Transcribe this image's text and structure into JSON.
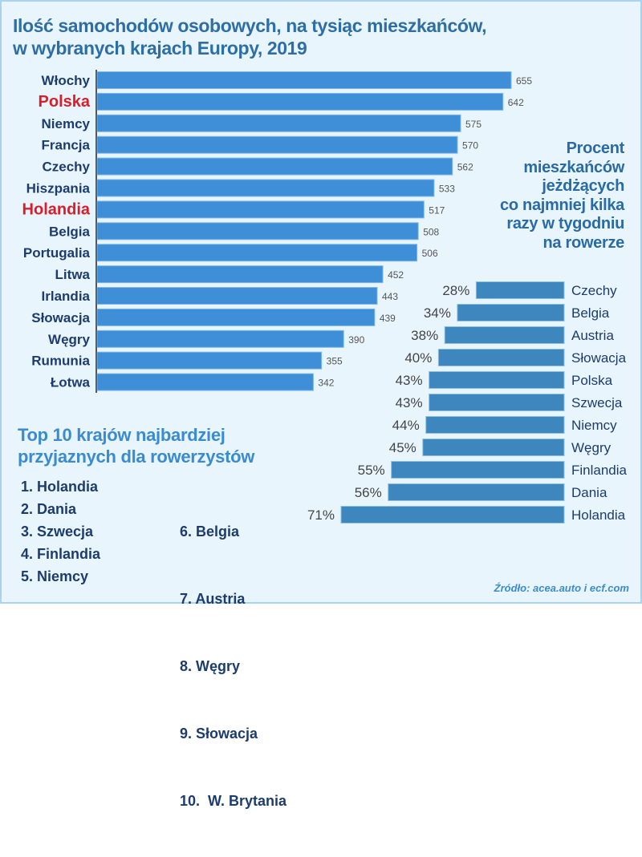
{
  "chart_data": [
    {
      "type": "bar",
      "orientation": "horizontal",
      "title": "Ilość samochodów osobowych, na tysiąc mieszkańców, w wybranych krajach Europy, 2019",
      "title_lines": [
        "Ilość samochodów osobowych, na tysiąc mieszkańców,",
        "w wybranych krajach Europy, 2019"
      ],
      "categories": [
        "Włochy",
        "Polska",
        "Niemcy",
        "Francja",
        "Czechy",
        "Hiszpania",
        "Holandia",
        "Belgia",
        "Portugalia",
        "Litwa",
        "Irlandia",
        "Słowacja",
        "Węgry",
        "Rumunia",
        "Łotwa"
      ],
      "values": [
        655,
        642,
        575,
        570,
        562,
        533,
        517,
        508,
        506,
        452,
        443,
        439,
        390,
        355,
        342
      ],
      "highlighted": [
        "Polska",
        "Holandia"
      ],
      "xlim": [
        0,
        655
      ],
      "colors": {
        "bar": "#3f8fd8",
        "label": "#1d3c6e",
        "highlight": "#d81e2a",
        "value": "#555555"
      }
    },
    {
      "type": "bar",
      "orientation": "horizontal",
      "title": "Procent mieszkańców jeżdżących co najmniej kilka razy w tygodniu na rowerze",
      "title_lines": [
        "Procent",
        "mieszkańców",
        "jeżdżących",
        "co najmniej kilka",
        "razy w tygodniu",
        "na rowerze"
      ],
      "categories": [
        "Czechy",
        "Belgia",
        "Austria",
        "Słowacja",
        "Polska",
        "Szwecja",
        "Niemcy",
        "Węgry",
        "Finlandia",
        "Dania",
        "Holandia"
      ],
      "values": [
        28,
        34,
        38,
        40,
        43,
        43,
        44,
        45,
        55,
        56,
        71
      ],
      "value_suffix": "%",
      "xlim": [
        0,
        71
      ],
      "colors": {
        "bar": "#3e86be",
        "label": "#1d3c6e",
        "value": "#444444"
      }
    }
  ],
  "top10": {
    "title_lines": [
      "Top 10 krajów najbardziej",
      "przyjaznych dla rowerzystów"
    ],
    "items": [
      "1. Holandia",
      "2. Dania",
      "3. Szwecja",
      "4. Finlandia",
      "5. Niemcy",
      "6. Belgia",
      "7. Austria",
      "8. Węgry",
      "9. Słowacja",
      "10.  W. Brytania"
    ]
  },
  "source": "Źródło: acea.auto i ecf.com"
}
